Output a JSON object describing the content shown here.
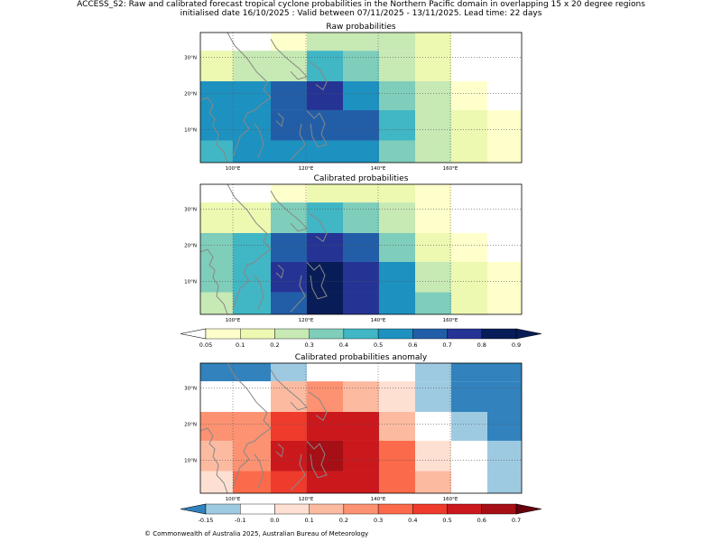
{
  "figure": {
    "title_line1": "ACCESS_S2: Raw and calibrated forecast tropical cyclone probabilities in the Northern Pacific domain in overlapping 15 x 20 degree regions",
    "title_line2": "initialised date 16/10/2025 :  Valid between 07/11/2025 - 13/11/2025. Lead time: 22 days",
    "copyright": "© Commonwealth of Australia 2025, Australian Bureau of Meteorology"
  },
  "map_axes": {
    "lon_ticks": [
      "100°E",
      "120°E",
      "140°E",
      "160°E"
    ],
    "lat_ticks": [
      "30°N",
      "20°N",
      "10°N"
    ]
  },
  "panels": [
    {
      "title": "Raw probabilities",
      "grid": [
        [
          null,
          null,
          "#ffffcc",
          "#c7e9b4",
          "#c7e9b4",
          "#c7e9b4",
          "#edf8b1",
          null,
          null
        ],
        [
          "#edf8b1",
          "#c7e9b4",
          "#c7e9b4",
          "#41b6c4",
          "#7fcdbb",
          "#c7e9b4",
          "#edf8b1",
          null,
          null
        ],
        [
          "#1d91c0",
          "#1d91c0",
          "#225ea8",
          "#253494",
          "#1d91c0",
          "#7fcdbb",
          "#c7e9b4",
          "#ffffcc",
          null
        ],
        [
          "#1d91c0",
          "#1d91c0",
          "#225ea8",
          "#225ea8",
          "#225ea8",
          "#41b6c4",
          "#c7e9b4",
          "#edf8b1",
          "#ffffcc"
        ],
        [
          "#41b6c4",
          "#1d91c0",
          "#1d91c0",
          "#1d91c0",
          "#1d91c0",
          "#7fcdbb",
          "#c7e9b4",
          "#edf8b1",
          "#ffffcc"
        ]
      ]
    },
    {
      "title": "Calibrated probabilities",
      "grid": [
        [
          null,
          null,
          "#ffffcc",
          "#edf8b1",
          "#edf8b1",
          "#edf8b1",
          "#ffffcc",
          null,
          null
        ],
        [
          "#edf8b1",
          "#edf8b1",
          "#7fcdbb",
          "#41b6c4",
          "#7fcdbb",
          "#c7e9b4",
          "#ffffcc",
          null,
          null
        ],
        [
          "#7fcdbb",
          "#41b6c4",
          "#225ea8",
          "#253494",
          "#225ea8",
          "#7fcdbb",
          "#edf8b1",
          "#ffffcc",
          null
        ],
        [
          "#7fcdbb",
          "#41b6c4",
          "#253494",
          "#081d58",
          "#253494",
          "#1d91c0",
          "#c7e9b4",
          "#edf8b1",
          "#ffffcc"
        ],
        [
          "#c7e9b4",
          "#41b6c4",
          "#225ea8",
          "#081d58",
          "#253494",
          "#1d91c0",
          "#7fcdbb",
          "#edf8b1",
          "#ffffcc"
        ]
      ]
    },
    {
      "title": "Calibrated probabilities anomaly",
      "grid": [
        [
          "#3182bd",
          "#3182bd",
          "#9ecae1",
          "#ffffff",
          "#ffffff",
          "#ffffff",
          "#9ecae1",
          "#3182bd",
          "#3182bd"
        ],
        [
          "#ffffff",
          "#ffffff",
          "#fcbba1",
          "#fc9272",
          "#fcbba1",
          "#fee0d2",
          "#9ecae1",
          "#3182bd",
          "#3182bd"
        ],
        [
          "#fc9272",
          "#fc9272",
          "#ef3b2c",
          "#cb181d",
          "#cb181d",
          "#fcbba1",
          "#ffffff",
          "#9ecae1",
          "#3182bd"
        ],
        [
          "#fcbba1",
          "#fc9272",
          "#cb181d",
          "#a50f15",
          "#cb181d",
          "#fb6a4a",
          "#fee0d2",
          "#ffffff",
          "#9ecae1"
        ],
        [
          "#fee0d2",
          "#fb6a4a",
          "#ef3b2c",
          "#cb181d",
          "#cb181d",
          "#fb6a4a",
          "#fcbba1",
          "#ffffff",
          "#9ecae1"
        ]
      ]
    }
  ],
  "colorbars": [
    {
      "name": "probability",
      "labels": [
        "0.05",
        "0.1",
        "0.2",
        "0.3",
        "0.4",
        "0.5",
        "0.6",
        "0.7",
        "0.8",
        "0.9"
      ],
      "under_color": "#ffffff",
      "over_color": "#081d58",
      "colors": [
        "#ffffcc",
        "#edf8b1",
        "#c7e9b4",
        "#7fcdbb",
        "#41b6c4",
        "#1d91c0",
        "#225ea8",
        "#253494",
        "#081d58"
      ]
    },
    {
      "name": "anomaly",
      "labels": [
        "-0.15",
        "-0.1",
        "0.0",
        "0.1",
        "0.2",
        "0.3",
        "0.4",
        "0.5",
        "0.6",
        "0.7"
      ],
      "under_color": "#3182bd",
      "over_color": "#67000d",
      "colors": [
        "#9ecae1",
        "#ffffff",
        "#fee0d2",
        "#fcbba1",
        "#fc9272",
        "#fb6a4a",
        "#ef3b2c",
        "#cb181d",
        "#a50f15"
      ]
    }
  ]
}
